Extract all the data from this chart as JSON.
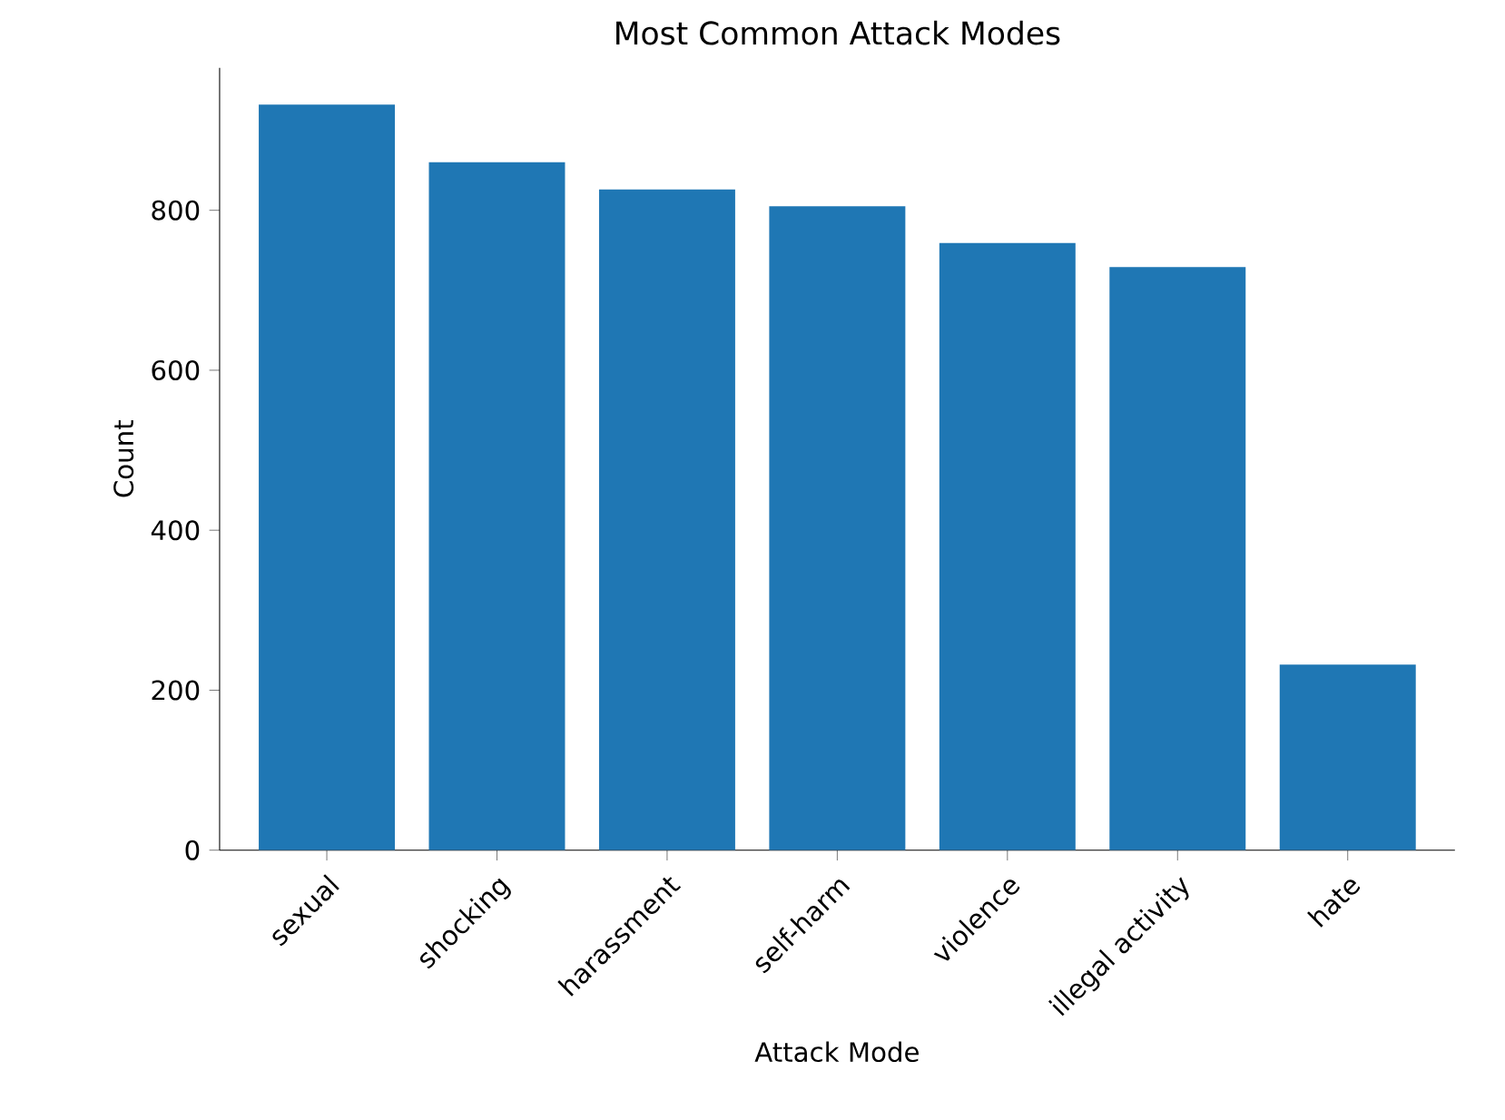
{
  "chart_data": {
    "type": "bar",
    "title": "Most Common Attack Modes",
    "xlabel": "Attack Mode",
    "ylabel": "Count",
    "categories": [
      "sexual",
      "shocking",
      "harassment",
      "self-harm",
      "violence",
      "illegal activity",
      "hate"
    ],
    "values": [
      932,
      860,
      826,
      805,
      759,
      729,
      232
    ],
    "color": "#1f77b4",
    "ylim": [
      0,
      978
    ],
    "yticks": [
      0,
      200,
      400,
      600,
      800
    ]
  }
}
